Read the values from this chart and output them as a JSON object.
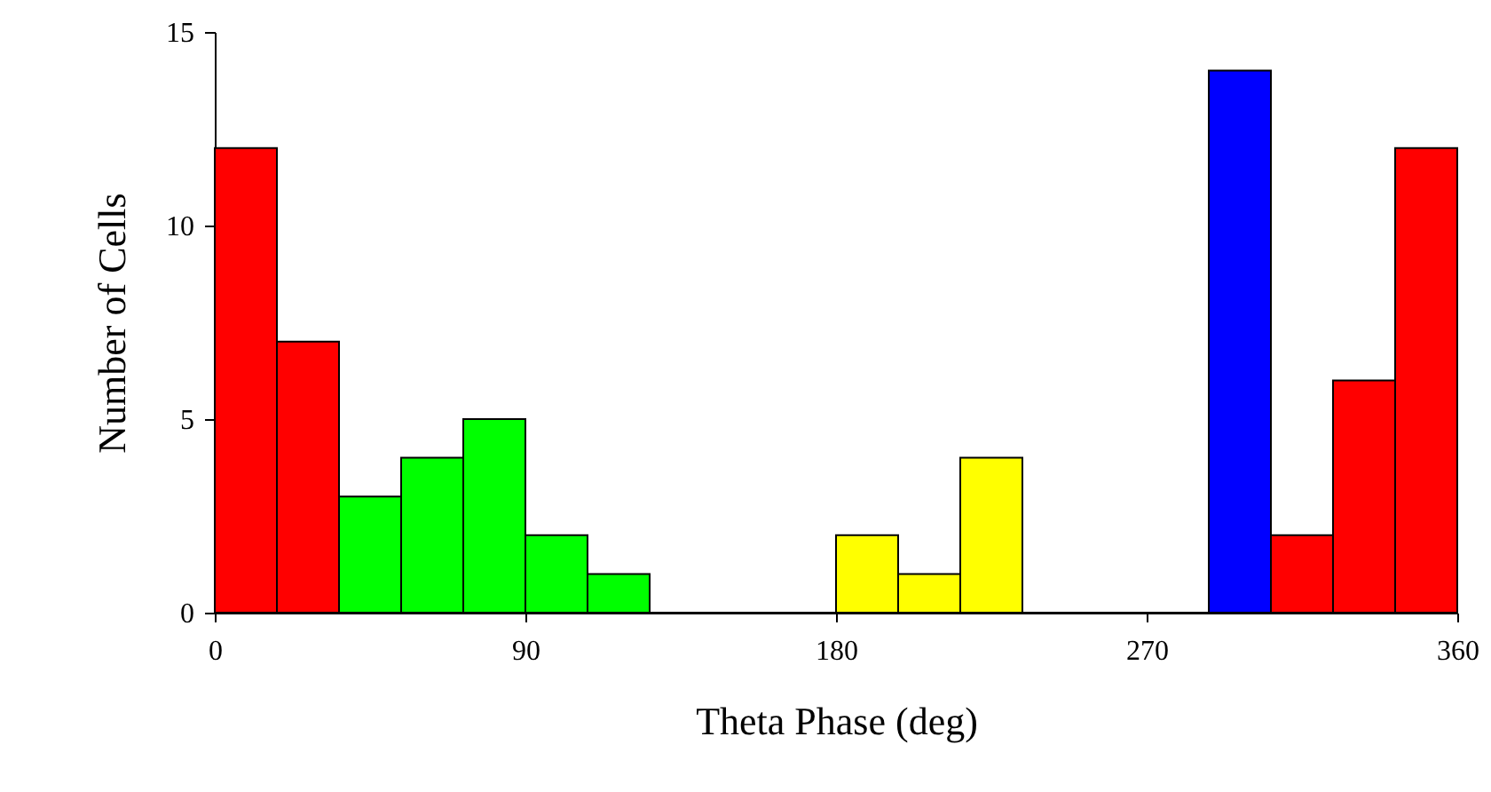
{
  "chart_data": {
    "type": "histogram",
    "xlabel": "Theta Phase (deg)",
    "ylabel": "Number of Cells",
    "bins": [
      0,
      18,
      36,
      54,
      72,
      90,
      108,
      126,
      144,
      162,
      180,
      198,
      216,
      234,
      252,
      270,
      288,
      306,
      324,
      342,
      360
    ],
    "values": [
      12,
      7,
      3,
      4,
      5,
      2,
      1,
      0,
      0,
      0,
      2,
      1,
      4,
      0,
      0,
      0,
      14,
      2,
      6,
      12
    ],
    "colors": [
      "#ff0000",
      "#ff0000",
      "#00ff00",
      "#00ff00",
      "#00ff00",
      "#00ff00",
      "#00ff00",
      "#00ff00",
      "#00ff00",
      "#00ff00",
      "#ffff00",
      "#ffff00",
      "#ffff00",
      "#ffff00",
      "#ffff00",
      "#ffff00",
      "#0000ff",
      "#ff0000",
      "#ff0000",
      "#ff0000"
    ],
    "xlim": [
      0,
      360
    ],
    "xticks": [
      0,
      90,
      180,
      270,
      360
    ],
    "ylim": [
      0,
      15
    ],
    "yticks": [
      0,
      5,
      10,
      15
    ],
    "grid": false,
    "legend": false
  }
}
